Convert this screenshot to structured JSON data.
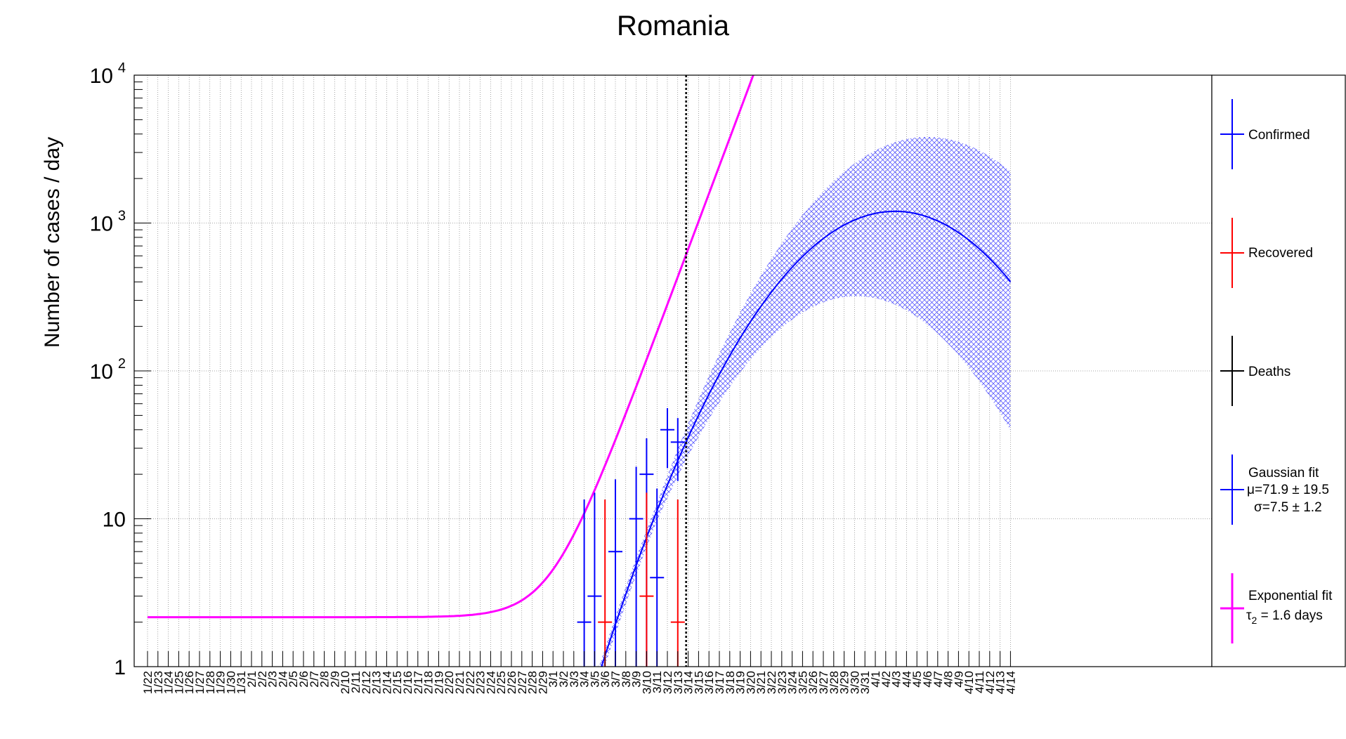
{
  "chart_data": {
    "type": "scatter",
    "title": "Romania",
    "xlabel": "",
    "ylabel": "Number of cases / day",
    "yscale": "log",
    "ylim": [
      1,
      10000
    ],
    "y_ticks": [
      {
        "value": 1,
        "base": "1",
        "exp": ""
      },
      {
        "value": 10,
        "base": "10",
        "exp": ""
      },
      {
        "value": 100,
        "base": "10",
        "exp": "2"
      },
      {
        "value": 1000,
        "base": "10",
        "exp": "3"
      },
      {
        "value": 10000,
        "base": "10",
        "exp": "4"
      }
    ],
    "categories": [
      "1/22",
      "1/23",
      "1/24",
      "1/25",
      "1/26",
      "1/27",
      "1/28",
      "1/29",
      "1/30",
      "1/31",
      "2/1",
      "2/2",
      "2/3",
      "2/4",
      "2/5",
      "2/6",
      "2/7",
      "2/8",
      "2/9",
      "2/10",
      "2/11",
      "2/12",
      "2/13",
      "2/14",
      "2/15",
      "2/16",
      "2/17",
      "2/18",
      "2/19",
      "2/20",
      "2/21",
      "2/22",
      "2/23",
      "2/24",
      "2/25",
      "2/26",
      "2/27",
      "2/28",
      "2/29",
      "3/1",
      "3/2",
      "3/3",
      "3/4",
      "3/5",
      "3/6",
      "3/7",
      "3/8",
      "3/9",
      "3/10",
      "3/11",
      "3/12",
      "3/13",
      "3/14",
      "3/15",
      "3/16",
      "3/17",
      "3/18",
      "3/19",
      "3/20",
      "3/21",
      "3/22",
      "3/23",
      "3/24",
      "3/25",
      "3/26",
      "3/27",
      "3/28",
      "3/29",
      "3/30",
      "3/31",
      "4/1",
      "4/2",
      "4/3",
      "4/4",
      "4/5",
      "4/6",
      "4/7",
      "4/8",
      "4/9",
      "4/10",
      "4/11",
      "4/12",
      "4/13",
      "4/14"
    ],
    "vertical_marker": "3/14",
    "series": [
      {
        "name": "Confirmed",
        "color": "#0000ff",
        "points": [
          {
            "x": "3/4",
            "y": 2,
            "lo": 1,
            "hi": 13.5
          },
          {
            "x": "3/5",
            "y": 3,
            "lo": 1,
            "hi": 15
          },
          {
            "x": "3/7",
            "y": 6,
            "lo": 1,
            "hi": 18.5
          },
          {
            "x": "3/9",
            "y": 10,
            "lo": 1,
            "hi": 22.5
          },
          {
            "x": "3/10",
            "y": 20,
            "lo": 1,
            "hi": 35
          },
          {
            "x": "3/11",
            "y": 4,
            "lo": 1,
            "hi": 16
          },
          {
            "x": "3/12",
            "y": 40,
            "lo": 22,
            "hi": 56
          },
          {
            "x": "3/13",
            "y": 33,
            "lo": 18,
            "hi": 48
          }
        ]
      },
      {
        "name": "Recovered",
        "color": "#ff0000",
        "points": [
          {
            "x": "3/6",
            "y": 2,
            "lo": 1,
            "hi": 13.5
          },
          {
            "x": "3/10",
            "y": 3,
            "lo": 1,
            "hi": 15
          },
          {
            "x": "3/13",
            "y": 2,
            "lo": 1,
            "hi": 13.5
          }
        ]
      },
      {
        "name": "Deaths",
        "color": "#000000",
        "points": []
      }
    ],
    "fits": {
      "gaussian": {
        "name": "Gaussian fit",
        "color": "#0000ff",
        "mu_label": "μ=71.9 ± 19.5",
        "sigma_label": "σ=7.5 ± 1.2",
        "mu": 71.9,
        "sigma": 7.5,
        "amplitude": 1200
      },
      "exponential": {
        "name": "Exponential fit",
        "color": "#ff00ff",
        "tau_symbol": "τ",
        "tau_sub": "2",
        "tau_text": " = 1.6 days",
        "baseline": 2.16,
        "tau2": 1.6,
        "offset_day": 37
      }
    },
    "legend_placement": "right",
    "grid": true,
    "band": {
      "color": "#0000ff",
      "description": "uncertainty"
    }
  }
}
